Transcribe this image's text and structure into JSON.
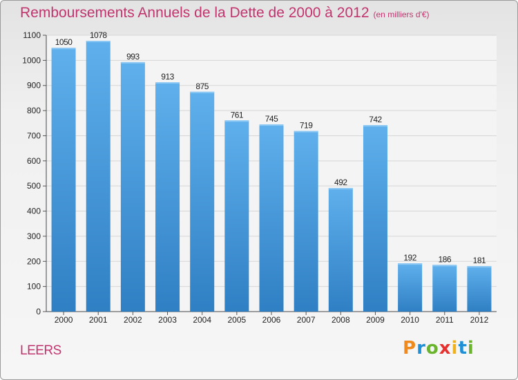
{
  "header": {
    "title": "Remboursements Annuels de la Dette de 2000 à 2012",
    "subtitle": "(en milliers d'€)"
  },
  "footer": {
    "commune": "LEERS",
    "logo_text": "Proxiti"
  },
  "colors": {
    "bar": "#4a9ce0",
    "title": "#c2346e",
    "grid": "#d6d6d6"
  },
  "chart_data": {
    "type": "bar",
    "title": "Remboursements Annuels de la Dette de 2000 à 2012",
    "subtitle": "(en milliers d'€)",
    "categories": [
      "2000",
      "2001",
      "2002",
      "2003",
      "2004",
      "2005",
      "2006",
      "2007",
      "2008",
      "2009",
      "2010",
      "2011",
      "2012"
    ],
    "values": [
      1050,
      1078,
      993,
      913,
      875,
      761,
      745,
      719,
      492,
      742,
      192,
      186,
      181
    ],
    "ylim": [
      0,
      1100
    ],
    "yticks": [
      0,
      100,
      200,
      300,
      400,
      500,
      600,
      700,
      800,
      900,
      1000,
      1100
    ],
    "grid": true,
    "data_labels": true,
    "legend": "none"
  }
}
